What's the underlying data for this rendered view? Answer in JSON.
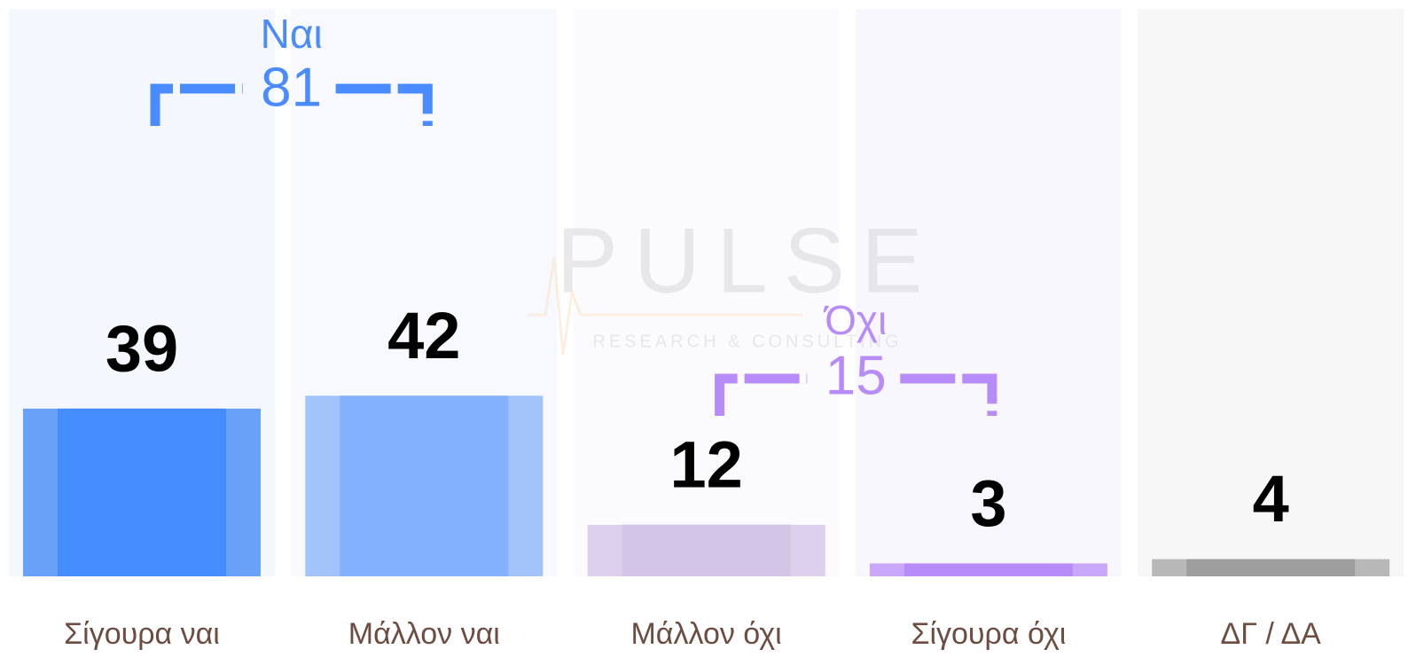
{
  "chart_data": {
    "type": "bar",
    "categories": [
      "Σίγουρα ναι",
      "Μάλλον ναι",
      "Μάλλον όχι",
      "Σίγουρα όχι",
      "ΔΓ / ΔΑ"
    ],
    "values": [
      39,
      42,
      12,
      3,
      4
    ],
    "colors": [
      "#448cff",
      "#84b1fd",
      "#d1c4e7",
      "#b78cf9",
      "#9e9e9e"
    ],
    "edge_colors": [
      "#6aa1f8",
      "#a3c3fb",
      "#ddd0ec",
      "#c9a8fb",
      "#b8b8b8"
    ],
    "groups": [
      {
        "label": "Ναι",
        "value": 81,
        "color": "#4a8cff"
      },
      {
        "label": "Όχι",
        "value": 15,
        "color": "#b78cf9"
      }
    ],
    "watermark": {
      "title": "PULSE",
      "subtitle": "RESEARCH & CONSULTING"
    }
  }
}
